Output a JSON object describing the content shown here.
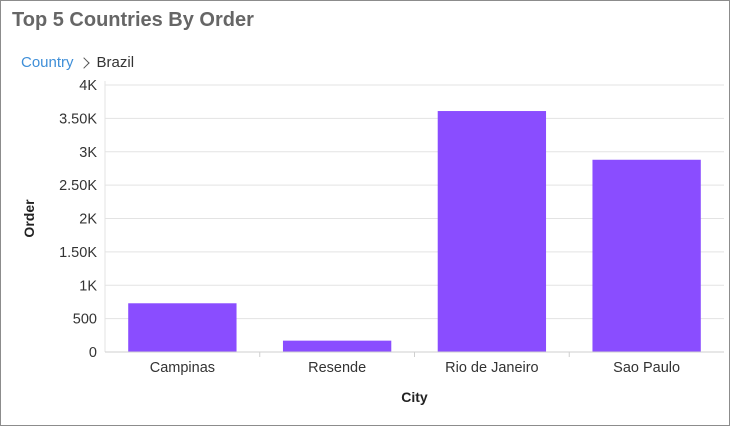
{
  "header": {
    "title": "Top 5 Countries By Order"
  },
  "breadcrumb": {
    "parent": "Country",
    "current": "Brazil"
  },
  "colors": {
    "bar": "#8a4dff",
    "grid": "#e3e3e3",
    "link": "#3f8fd8"
  },
  "chart_data": {
    "type": "bar",
    "categories": [
      "Campinas",
      "Resende",
      "Rio de Janeiro",
      "Sao Paulo"
    ],
    "values": [
      730,
      170,
      3610,
      2880
    ],
    "xlabel": "City",
    "ylabel": "Order",
    "ylim": [
      0,
      4000
    ],
    "yticks": [
      0,
      500,
      1000,
      1500,
      2000,
      2500,
      3000,
      3500,
      4000
    ],
    "ytick_labels": [
      "0",
      "500",
      "1K",
      "1.50K",
      "2K",
      "2.50K",
      "3K",
      "3.50K",
      "4K"
    ],
    "grid": true,
    "legend": "none"
  }
}
